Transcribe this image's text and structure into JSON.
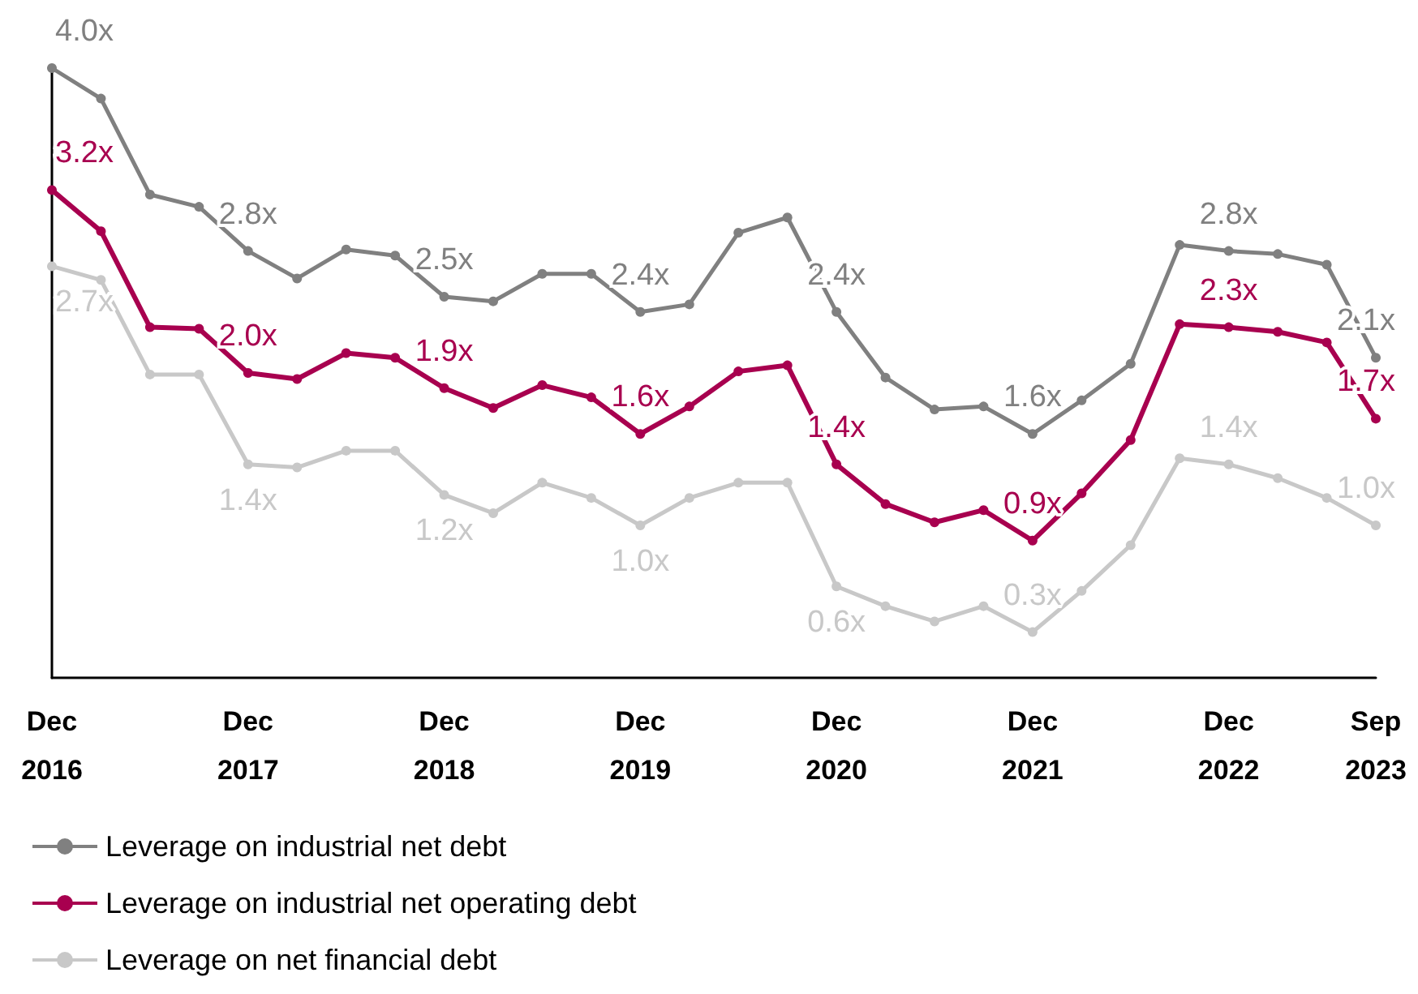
{
  "chart_data": {
    "type": "line",
    "categories": [
      "Dec\n2016",
      null,
      null,
      null,
      "Dec\n2017",
      null,
      null,
      null,
      "Dec\n2018",
      null,
      null,
      null,
      "Dec\n2019",
      null,
      null,
      null,
      "Dec\n2020",
      null,
      null,
      null,
      "Dec\n2021",
      null,
      null,
      null,
      "Dec\n2022",
      null,
      null,
      "Sep\n2023"
    ],
    "series": [
      {
        "name": "Leverage on industrial net debt",
        "color": "#808080",
        "values": [
          4.0,
          3.8,
          3.17,
          3.09,
          2.8,
          2.62,
          2.81,
          2.77,
          2.5,
          2.47,
          2.65,
          2.65,
          2.4,
          2.45,
          2.92,
          3.02,
          2.4,
          1.97,
          1.76,
          1.78,
          1.6,
          1.82,
          2.06,
          2.84,
          2.8,
          2.78,
          2.71,
          2.1
        ],
        "value_labels": [
          "4.0x",
          null,
          null,
          null,
          "2.8x",
          null,
          null,
          null,
          "2.5x",
          null,
          null,
          null,
          "2.4x",
          null,
          null,
          null,
          "2.4x",
          null,
          null,
          null,
          "1.6x",
          null,
          null,
          null,
          "2.8x",
          null,
          null,
          "2.1x"
        ]
      },
      {
        "name": "Leverage on industrial net operating debt",
        "color": "#a8004f",
        "values": [
          3.2,
          2.93,
          2.3,
          2.29,
          2.0,
          1.96,
          2.13,
          2.1,
          1.9,
          1.77,
          1.92,
          1.84,
          1.6,
          1.78,
          2.01,
          2.05,
          1.4,
          1.14,
          1.02,
          1.1,
          0.9,
          1.21,
          1.56,
          2.32,
          2.3,
          2.27,
          2.2,
          1.7
        ],
        "value_labels": [
          "3.2x",
          null,
          null,
          null,
          "2.0x",
          null,
          null,
          null,
          "1.9x",
          null,
          null,
          null,
          "1.6x",
          null,
          null,
          null,
          "1.4x",
          null,
          null,
          null,
          "0.9x",
          null,
          null,
          null,
          "2.3x",
          null,
          null,
          "1.7x"
        ]
      },
      {
        "name": "Leverage on net financial debt",
        "color": "#c8c8c8",
        "values": [
          2.7,
          2.61,
          1.99,
          1.99,
          1.4,
          1.38,
          1.49,
          1.49,
          1.2,
          1.08,
          1.28,
          1.18,
          1.0,
          1.18,
          1.28,
          1.28,
          0.6,
          0.47,
          0.37,
          0.47,
          0.3,
          0.57,
          0.87,
          1.44,
          1.4,
          1.31,
          1.18,
          1.0
        ],
        "value_labels": [
          "2.7x",
          null,
          null,
          null,
          "1.4x",
          null,
          null,
          null,
          "1.2x",
          null,
          null,
          null,
          "1.0x",
          null,
          null,
          null,
          "0.6x",
          null,
          null,
          null,
          "0.3x",
          null,
          null,
          null,
          "1.4x",
          null,
          null,
          "1.0x"
        ]
      }
    ],
    "ylim": [
      0,
      4.0
    ],
    "tick_labels": "x",
    "grid": false,
    "legend": "bottom",
    "marker": "circle",
    "line_style": "solid"
  }
}
